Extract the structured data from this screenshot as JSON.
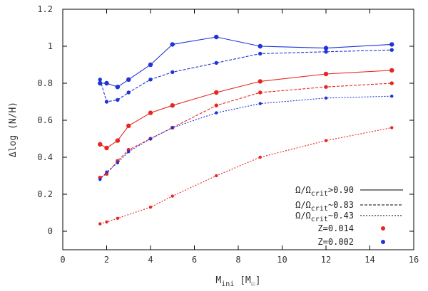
{
  "chart_data": {
    "type": "line",
    "title": "",
    "xlabel": "M_ini [M_☉]",
    "ylabel": "Δlog (N/H)",
    "xlim": [
      0,
      16
    ],
    "ylim": [
      -0.1,
      1.2
    ],
    "xticks": [
      0,
      2,
      4,
      6,
      8,
      10,
      12,
      14,
      16
    ],
    "xtick_labels": [
      "0",
      "2",
      "4",
      "6",
      "8",
      "10",
      "12",
      "14",
      "16"
    ],
    "yticks": [
      0,
      0.2,
      0.4,
      0.6,
      0.8,
      1.0,
      1.2
    ],
    "ytick_labels": [
      "0",
      "0.2",
      "0.4",
      "0.6",
      "0.8",
      "1",
      "1.2"
    ],
    "grid": false,
    "legend_position": "bottom-right",
    "legend": [
      {
        "label": "Ω/Ω_crit>0.90",
        "style": "solid"
      },
      {
        "label": "Ω/Ω_crit~0.83",
        "style": "dashed"
      },
      {
        "label": "Ω/Ω_crit~0.43",
        "style": "dotted"
      },
      {
        "label": "Z=0.014",
        "marker": "dot",
        "color": "#e8251f"
      },
      {
        "label": "Z=0.002",
        "marker": "dot",
        "color": "#1f33d6"
      }
    ],
    "series": [
      {
        "metallicity": "Z=0.002",
        "rotation": ">0.90",
        "style": "solid",
        "color": "#1f33d6",
        "x": [
          1.7,
          2.0,
          2.5,
          3.0,
          4.0,
          5.0,
          7.0,
          9.0,
          12.0,
          15.0
        ],
        "y": [
          0.8,
          0.8,
          0.78,
          0.82,
          0.9,
          1.01,
          1.05,
          1.0,
          0.99,
          1.01
        ]
      },
      {
        "metallicity": "Z=0.002",
        "rotation": "~0.83",
        "style": "dashed",
        "color": "#1f33d6",
        "x": [
          1.7,
          2.0,
          2.5,
          3.0,
          4.0,
          5.0,
          7.0,
          9.0,
          12.0,
          15.0
        ],
        "y": [
          0.82,
          0.7,
          0.71,
          0.75,
          0.82,
          0.86,
          0.91,
          0.96,
          0.97,
          0.98
        ]
      },
      {
        "metallicity": "Z=0.014",
        "rotation": ">0.90",
        "style": "solid",
        "color": "#e8251f",
        "x": [
          1.7,
          2.0,
          2.5,
          3.0,
          4.0,
          5.0,
          7.0,
          9.0,
          12.0,
          15.0
        ],
        "y": [
          0.47,
          0.45,
          0.49,
          0.57,
          0.64,
          0.68,
          0.75,
          0.81,
          0.85,
          0.87
        ]
      },
      {
        "metallicity": "Z=0.014",
        "rotation": "~0.83",
        "style": "dashed",
        "color": "#e8251f",
        "x": [
          1.7,
          2.0,
          2.5,
          3.0,
          4.0,
          5.0,
          7.0,
          9.0,
          12.0,
          15.0
        ],
        "y": [
          0.29,
          0.31,
          0.38,
          0.44,
          0.5,
          0.56,
          0.68,
          0.75,
          0.78,
          0.8
        ]
      },
      {
        "metallicity": "Z=0.002",
        "rotation": "~0.43",
        "style": "dotted",
        "color": "#1f33d6",
        "x": [
          1.7,
          2.0,
          2.5,
          3.0,
          4.0,
          5.0,
          7.0,
          9.0,
          12.0,
          15.0
        ],
        "y": [
          0.28,
          0.32,
          0.37,
          0.43,
          0.5,
          0.56,
          0.64,
          0.69,
          0.72,
          0.73
        ]
      },
      {
        "metallicity": "Z=0.014",
        "rotation": "~0.43",
        "style": "dotted",
        "color": "#e8251f",
        "x": [
          1.7,
          2.0,
          2.5,
          4.0,
          5.0,
          7.0,
          9.0,
          12.0,
          15.0
        ],
        "y": [
          0.04,
          0.05,
          0.07,
          0.13,
          0.19,
          0.3,
          0.4,
          0.49,
          0.56
        ]
      }
    ]
  }
}
